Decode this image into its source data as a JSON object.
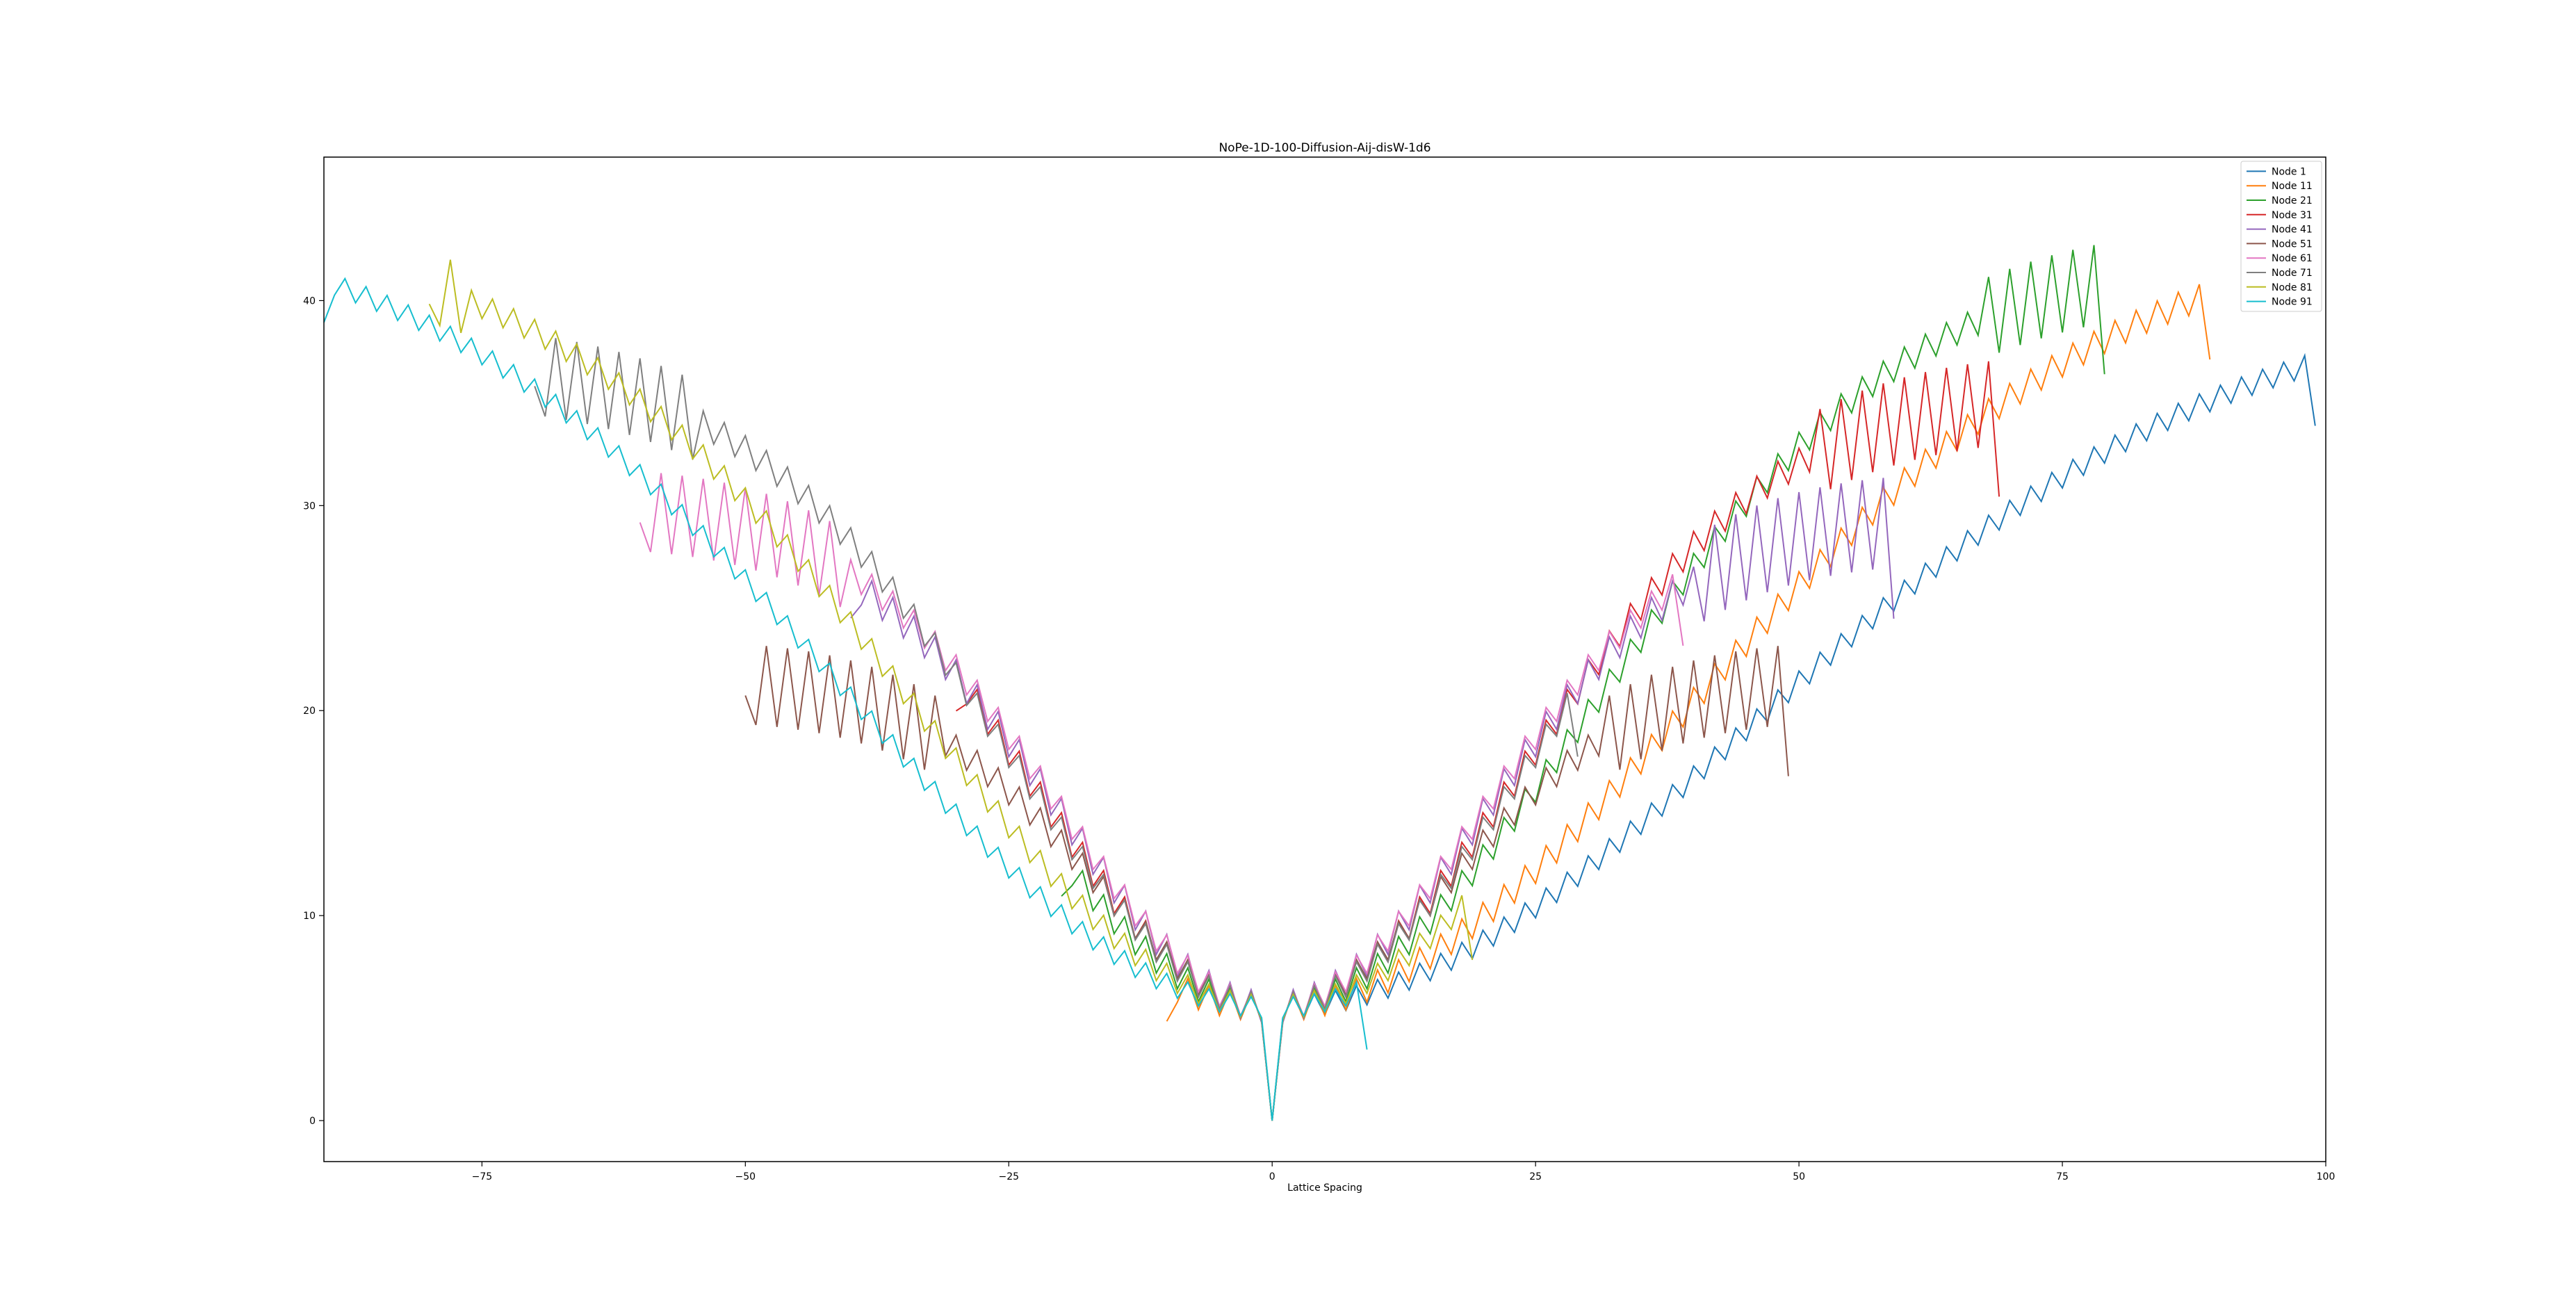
{
  "chart_data": {
    "type": "line",
    "title": "NoPe-1D-100-Diffusion-Aij-disW-1d6",
    "xlabel": "Lattice Spacing",
    "ylabel": "",
    "xlim": [
      -90,
      100
    ],
    "ylim": [
      -2,
      47
    ],
    "xticks": [
      -75,
      -50,
      -25,
      0,
      25,
      50,
      75,
      100
    ],
    "yticks": [
      0,
      10,
      20,
      30,
      40
    ],
    "xtick_labels": [
      "−75",
      "−50",
      "−25",
      "0",
      "25",
      "50",
      "75",
      "100"
    ],
    "ytick_labels": [
      "0",
      "10",
      "20",
      "30",
      "40"
    ],
    "grid": false,
    "legend_position": "top-right",
    "series": [
      {
        "name": "Node 1",
        "color": "#1f77b4",
        "start": 0,
        "end": 99,
        "peak": 40,
        "sigma": 45,
        "zigzag": 1.2
      },
      {
        "name": "Node 11",
        "color": "#ff7f0e",
        "start": -10,
        "end": 89,
        "peak": 43.5,
        "sigma": 40,
        "zigzag": 1.5
      },
      {
        "name": "Node 21",
        "color": "#2ca02c",
        "start": -20,
        "end": 79,
        "peak": 42,
        "sigma": 30,
        "zigzag": 1.5
      },
      {
        "name": "Node 31",
        "color": "#d62728",
        "start": -30,
        "end": 69,
        "peak": 35.5,
        "sigma": 24,
        "zigzag": 1.6
      },
      {
        "name": "Node 41",
        "color": "#9467bd",
        "start": -40,
        "end": 59,
        "peak": 29.5,
        "sigma": 20,
        "zigzag": 1.7
      },
      {
        "name": "Node 51",
        "color": "#8c564b",
        "start": -50,
        "end": 49,
        "peak": 21.5,
        "sigma": 17,
        "zigzag": 1.5
      },
      {
        "name": "Node 61",
        "color": "#e377c2",
        "start": -60,
        "end": 39,
        "peak": 30,
        "sigma": 20,
        "zigzag": 1.5
      },
      {
        "name": "Node 71",
        "color": "#7f7f7f",
        "start": -70,
        "end": 29,
        "peak": 37,
        "sigma": 25,
        "zigzag": 1.5
      },
      {
        "name": "Node 81",
        "color": "#bcbd22",
        "start": -80,
        "end": 19,
        "peak": 43,
        "sigma": 34,
        "zigzag": 1.3
      },
      {
        "name": "Node 91",
        "color": "#17becf",
        "start": -90,
        "end": 9,
        "peak": 44,
        "sigma": 40,
        "zigzag": 1.1
      }
    ]
  }
}
